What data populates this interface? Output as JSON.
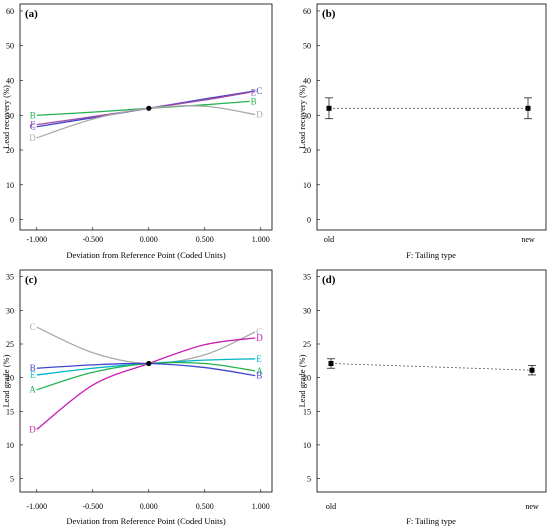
{
  "chart_data": [
    {
      "panel_label": "(a)",
      "type": "line",
      "xlabel": "Deviation from Reference Point (Coded Units)",
      "ylabel": "Lead recovery (%)",
      "xlim": [
        -1.15,
        1.1
      ],
      "ylim": [
        -3,
        62
      ],
      "xticks": [
        -1,
        -0.5,
        0,
        0.5,
        1
      ],
      "xtick_labels": [
        "-1.000",
        "-0.500",
        "0.000",
        "0.500",
        "1.000"
      ],
      "yticks": [
        0,
        10,
        20,
        30,
        40,
        50,
        60
      ],
      "ytick_labels": [
        "0",
        "10",
        "20",
        "30",
        "40",
        "50",
        "60"
      ],
      "reference_point": {
        "x": 0,
        "y": 32
      },
      "series": [
        {
          "label": "B",
          "color": "#22b14c",
          "points": [
            [
              -1,
              30.0
            ],
            [
              -0.5,
              30.9
            ],
            [
              0,
              32.0
            ],
            [
              0.5,
              33.0
            ],
            [
              0.9,
              34.0
            ]
          ],
          "label_at": "both"
        },
        {
          "label": "C",
          "color": "#3f48cc",
          "points": [
            [
              -1,
              26.7
            ],
            [
              -0.5,
              29.3
            ],
            [
              0,
              32.0
            ],
            [
              0.5,
              34.7
            ],
            [
              0.95,
              37.0
            ]
          ],
          "label_at": "both"
        },
        {
          "label": "E",
          "color": "#a349a4",
          "points": [
            [
              -1,
              27.3
            ],
            [
              -0.5,
              29.6
            ],
            [
              0,
              32.0
            ],
            [
              0.5,
              34.4
            ],
            [
              0.9,
              36.6
            ]
          ],
          "label_at": "both"
        },
        {
          "label": "D",
          "color": "#aaaaaa",
          "points": [
            [
              -1,
              23.5
            ],
            [
              -0.5,
              28.9
            ],
            [
              0,
              32.0
            ],
            [
              0.5,
              32.6
            ],
            [
              0.95,
              30.2
            ]
          ],
          "label_at": "both"
        }
      ]
    },
    {
      "panel_label": "(b)",
      "type": "line",
      "xlabel": "F: Tailing type",
      "ylabel": "Lead recovery (%)",
      "ylim": [
        -3,
        62
      ],
      "yticks": [
        0,
        10,
        20,
        30,
        40,
        50,
        60
      ],
      "ytick_labels": [
        "0",
        "10",
        "20",
        "30",
        "40",
        "50",
        "60"
      ],
      "categories": [
        "old",
        "new"
      ],
      "values": [
        32,
        32
      ],
      "error_low": [
        29,
        29
      ],
      "error_high": [
        35,
        35
      ]
    },
    {
      "panel_label": "(c)",
      "type": "line",
      "xlabel": "Deviation from Reference Point (Coded Units)",
      "ylabel": "Lead grade (%)",
      "xlim": [
        -1.15,
        1.1
      ],
      "ylim": [
        3,
        36
      ],
      "xticks": [
        -1,
        -0.5,
        0,
        0.5,
        1
      ],
      "xtick_labels": [
        "-1.000",
        "-0.500",
        "0.000",
        "0.500",
        "1.000"
      ],
      "yticks": [
        5,
        10,
        15,
        20,
        25,
        30,
        35
      ],
      "ytick_labels": [
        "5",
        "10",
        "15",
        "20",
        "25",
        "30",
        "35"
      ],
      "reference_point": {
        "x": 0,
        "y": 22.1
      },
      "series": [
        {
          "label": "C",
          "color": "#aaaaaa",
          "points": [
            [
              -1,
              27.5
            ],
            [
              -0.5,
              23.7
            ],
            [
              0,
              22.1
            ],
            [
              0.5,
              23.4
            ],
            [
              0.95,
              26.8
            ]
          ],
          "label_at": "both"
        },
        {
          "label": "D",
          "color": "#c81eb4",
          "points": [
            [
              -1,
              12.3
            ],
            [
              -0.5,
              18.9
            ],
            [
              0,
              22.1
            ],
            [
              0.5,
              24.9
            ],
            [
              0.95,
              25.9
            ]
          ],
          "label_at": "both"
        },
        {
          "label": "E",
          "color": "#00b4c8",
          "points": [
            [
              -1,
              20.4
            ],
            [
              -0.5,
              21.4
            ],
            [
              0,
              22.1
            ],
            [
              0.5,
              22.6
            ],
            [
              0.95,
              22.8
            ]
          ],
          "label_at": "both"
        },
        {
          "label": "A",
          "color": "#22b14c",
          "points": [
            [
              -1,
              18.2
            ],
            [
              -0.5,
              20.8
            ],
            [
              0,
              22.1
            ],
            [
              0.5,
              22.1
            ],
            [
              0.95,
              21.0
            ]
          ],
          "label_at": "both"
        },
        {
          "label": "B",
          "color": "#3f48cc",
          "points": [
            [
              -1,
              21.4
            ],
            [
              -0.5,
              21.9
            ],
            [
              0,
              22.1
            ],
            [
              0.5,
              21.5
            ],
            [
              0.95,
              20.3
            ]
          ],
          "label_at": "both"
        }
      ]
    },
    {
      "panel_label": "(d)",
      "type": "line",
      "xlabel": "F: Tailing type",
      "ylabel": "Lead grade (%)",
      "ylim": [
        3,
        36
      ],
      "yticks": [
        5,
        10,
        15,
        20,
        25,
        30,
        35
      ],
      "ytick_labels": [
        "5",
        "10",
        "15",
        "20",
        "25",
        "30",
        "35"
      ],
      "categories": [
        "old",
        "new"
      ],
      "values": [
        22.1,
        21.1
      ],
      "error_low": [
        21.4,
        20.4
      ],
      "error_high": [
        22.8,
        21.8
      ]
    }
  ]
}
